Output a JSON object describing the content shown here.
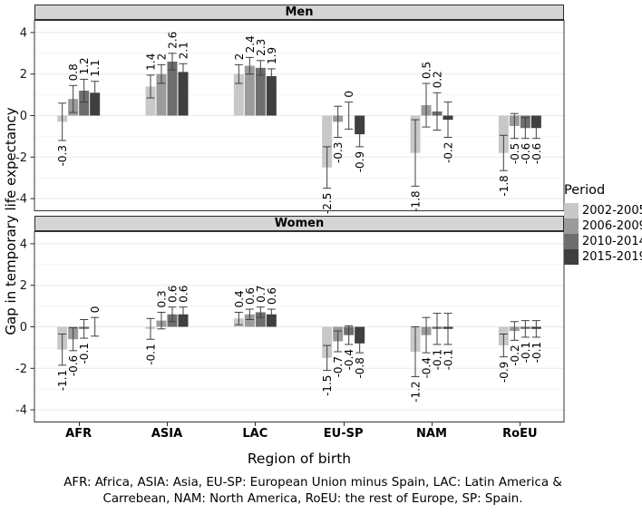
{
  "chart_data": {
    "type": "bar",
    "title": "",
    "xlabel": "Region of birth",
    "ylabel": "Gap in temporary life expectancy",
    "categories": [
      "AFR",
      "ASIA",
      "LAC",
      "EU-SP",
      "NAM",
      "RoEU"
    ],
    "ylim": [
      -4.6,
      4.6
    ],
    "yticks": [
      -4,
      -2,
      0,
      2,
      4
    ],
    "yticks_minor": [
      -3,
      -1,
      1,
      3
    ],
    "grid": true,
    "error_bars": true,
    "legend": {
      "title": "Period",
      "position": "right",
      "entries": [
        "2002-2005",
        "2006-2009",
        "2010-2014",
        "2015-2019"
      ],
      "colors": [
        "#c8c8c8",
        "#9b9b9b",
        "#6e6e6e",
        "#3f3f3f"
      ]
    },
    "panels": [
      {
        "label": "Men",
        "series": [
          {
            "name": "2002-2005",
            "values": [
              -0.3,
              1.4,
              2,
              -2.5,
              -1.8,
              -1.8
            ],
            "errors": [
              0.9,
              0.55,
              0.45,
              1.0,
              1.6,
              0.85
            ]
          },
          {
            "name": "2006-2009",
            "values": [
              0.8,
              2,
              2.4,
              -0.3,
              0.5,
              -0.5
            ],
            "errors": [
              0.65,
              0.45,
              0.4,
              0.75,
              1.05,
              0.6
            ]
          },
          {
            "name": "2010-2014",
            "values": [
              1.2,
              2.6,
              2.3,
              0,
              0.2,
              -0.6
            ],
            "errors": [
              0.55,
              0.4,
              0.35,
              0.65,
              0.9,
              0.5
            ]
          },
          {
            "name": "2015-2019",
            "values": [
              1.1,
              2.1,
              1.9,
              -0.9,
              -0.2,
              -0.6
            ],
            "errors": [
              0.55,
              0.4,
              0.35,
              0.6,
              0.85,
              0.5
            ]
          }
        ]
      },
      {
        "label": "Women",
        "series": [
          {
            "name": "2002-2005",
            "values": [
              -1.1,
              -0.1,
              0.4,
              -1.5,
              -1.2,
              -0.9
            ],
            "errors": [
              0.75,
              0.5,
              0.3,
              0.6,
              1.2,
              0.55
            ]
          },
          {
            "name": "2006-2009",
            "values": [
              -0.6,
              0.3,
              0.6,
              -0.7,
              -0.4,
              -0.2
            ],
            "errors": [
              0.55,
              0.4,
              0.25,
              0.5,
              0.85,
              0.45
            ]
          },
          {
            "name": "2010-2014",
            "values": [
              -0.1,
              0.6,
              0.7,
              -0.4,
              -0.1,
              -0.1
            ],
            "errors": [
              0.45,
              0.35,
              0.25,
              0.45,
              0.75,
              0.4
            ]
          },
          {
            "name": "2015-2019",
            "values": [
              0,
              0.6,
              0.6,
              -0.8,
              -0.1,
              -0.1
            ],
            "errors": [
              0.45,
              0.35,
              0.25,
              0.45,
              0.75,
              0.4
            ]
          }
        ]
      }
    ]
  },
  "caption": {
    "line1": "AFR: Africa, ASIA: Asia,  EU-SP: European Union minus Spain, LAC: Latin America &",
    "line2": "Carrebean, NAM: North America, RoEU: the rest of Europe,  SP: Spain."
  }
}
